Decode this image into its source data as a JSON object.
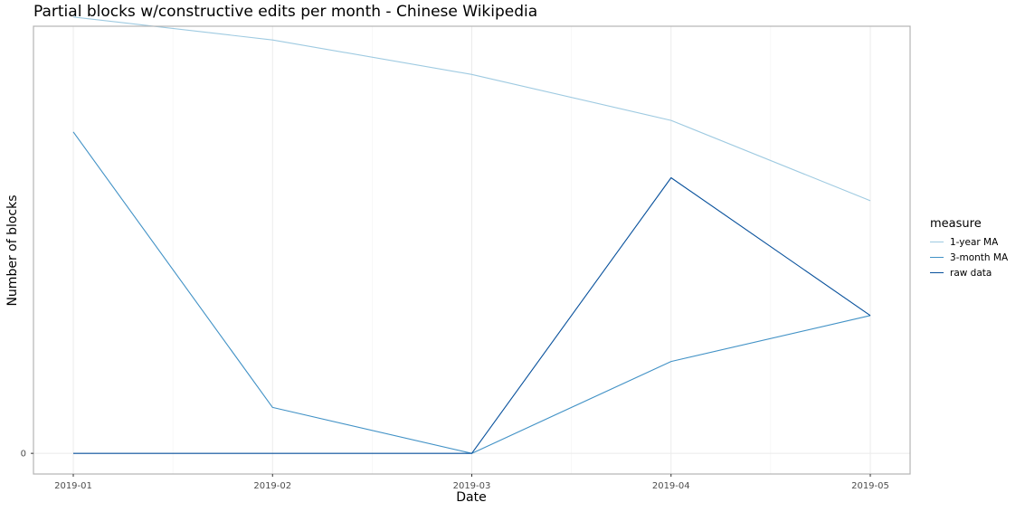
{
  "chart_data": {
    "type": "line",
    "title": "Partial blocks w/constructive edits per month - Chinese Wikipedia",
    "xlabel": "Date",
    "ylabel": "Number of blocks",
    "x": [
      "2019-01",
      "2019-02",
      "2019-03",
      "2019-04",
      "2019-05"
    ],
    "y_ticks": [
      0
    ],
    "ylim": [
      -0.45,
      9.3
    ],
    "series": [
      {
        "name": "1-year MA",
        "values": [
          9.5,
          9.0,
          8.25,
          7.25,
          5.5
        ],
        "color": "#9ecae1"
      },
      {
        "name": "3-month MA",
        "values": [
          7.0,
          1.0,
          0.0,
          2.0,
          3.0
        ],
        "color": "#4292c6"
      },
      {
        "name": "raw data",
        "values": [
          0,
          0,
          0,
          6,
          3
        ],
        "color": "#08519c"
      }
    ],
    "grid": true,
    "legend": {
      "title": "measure",
      "position": "right"
    }
  }
}
